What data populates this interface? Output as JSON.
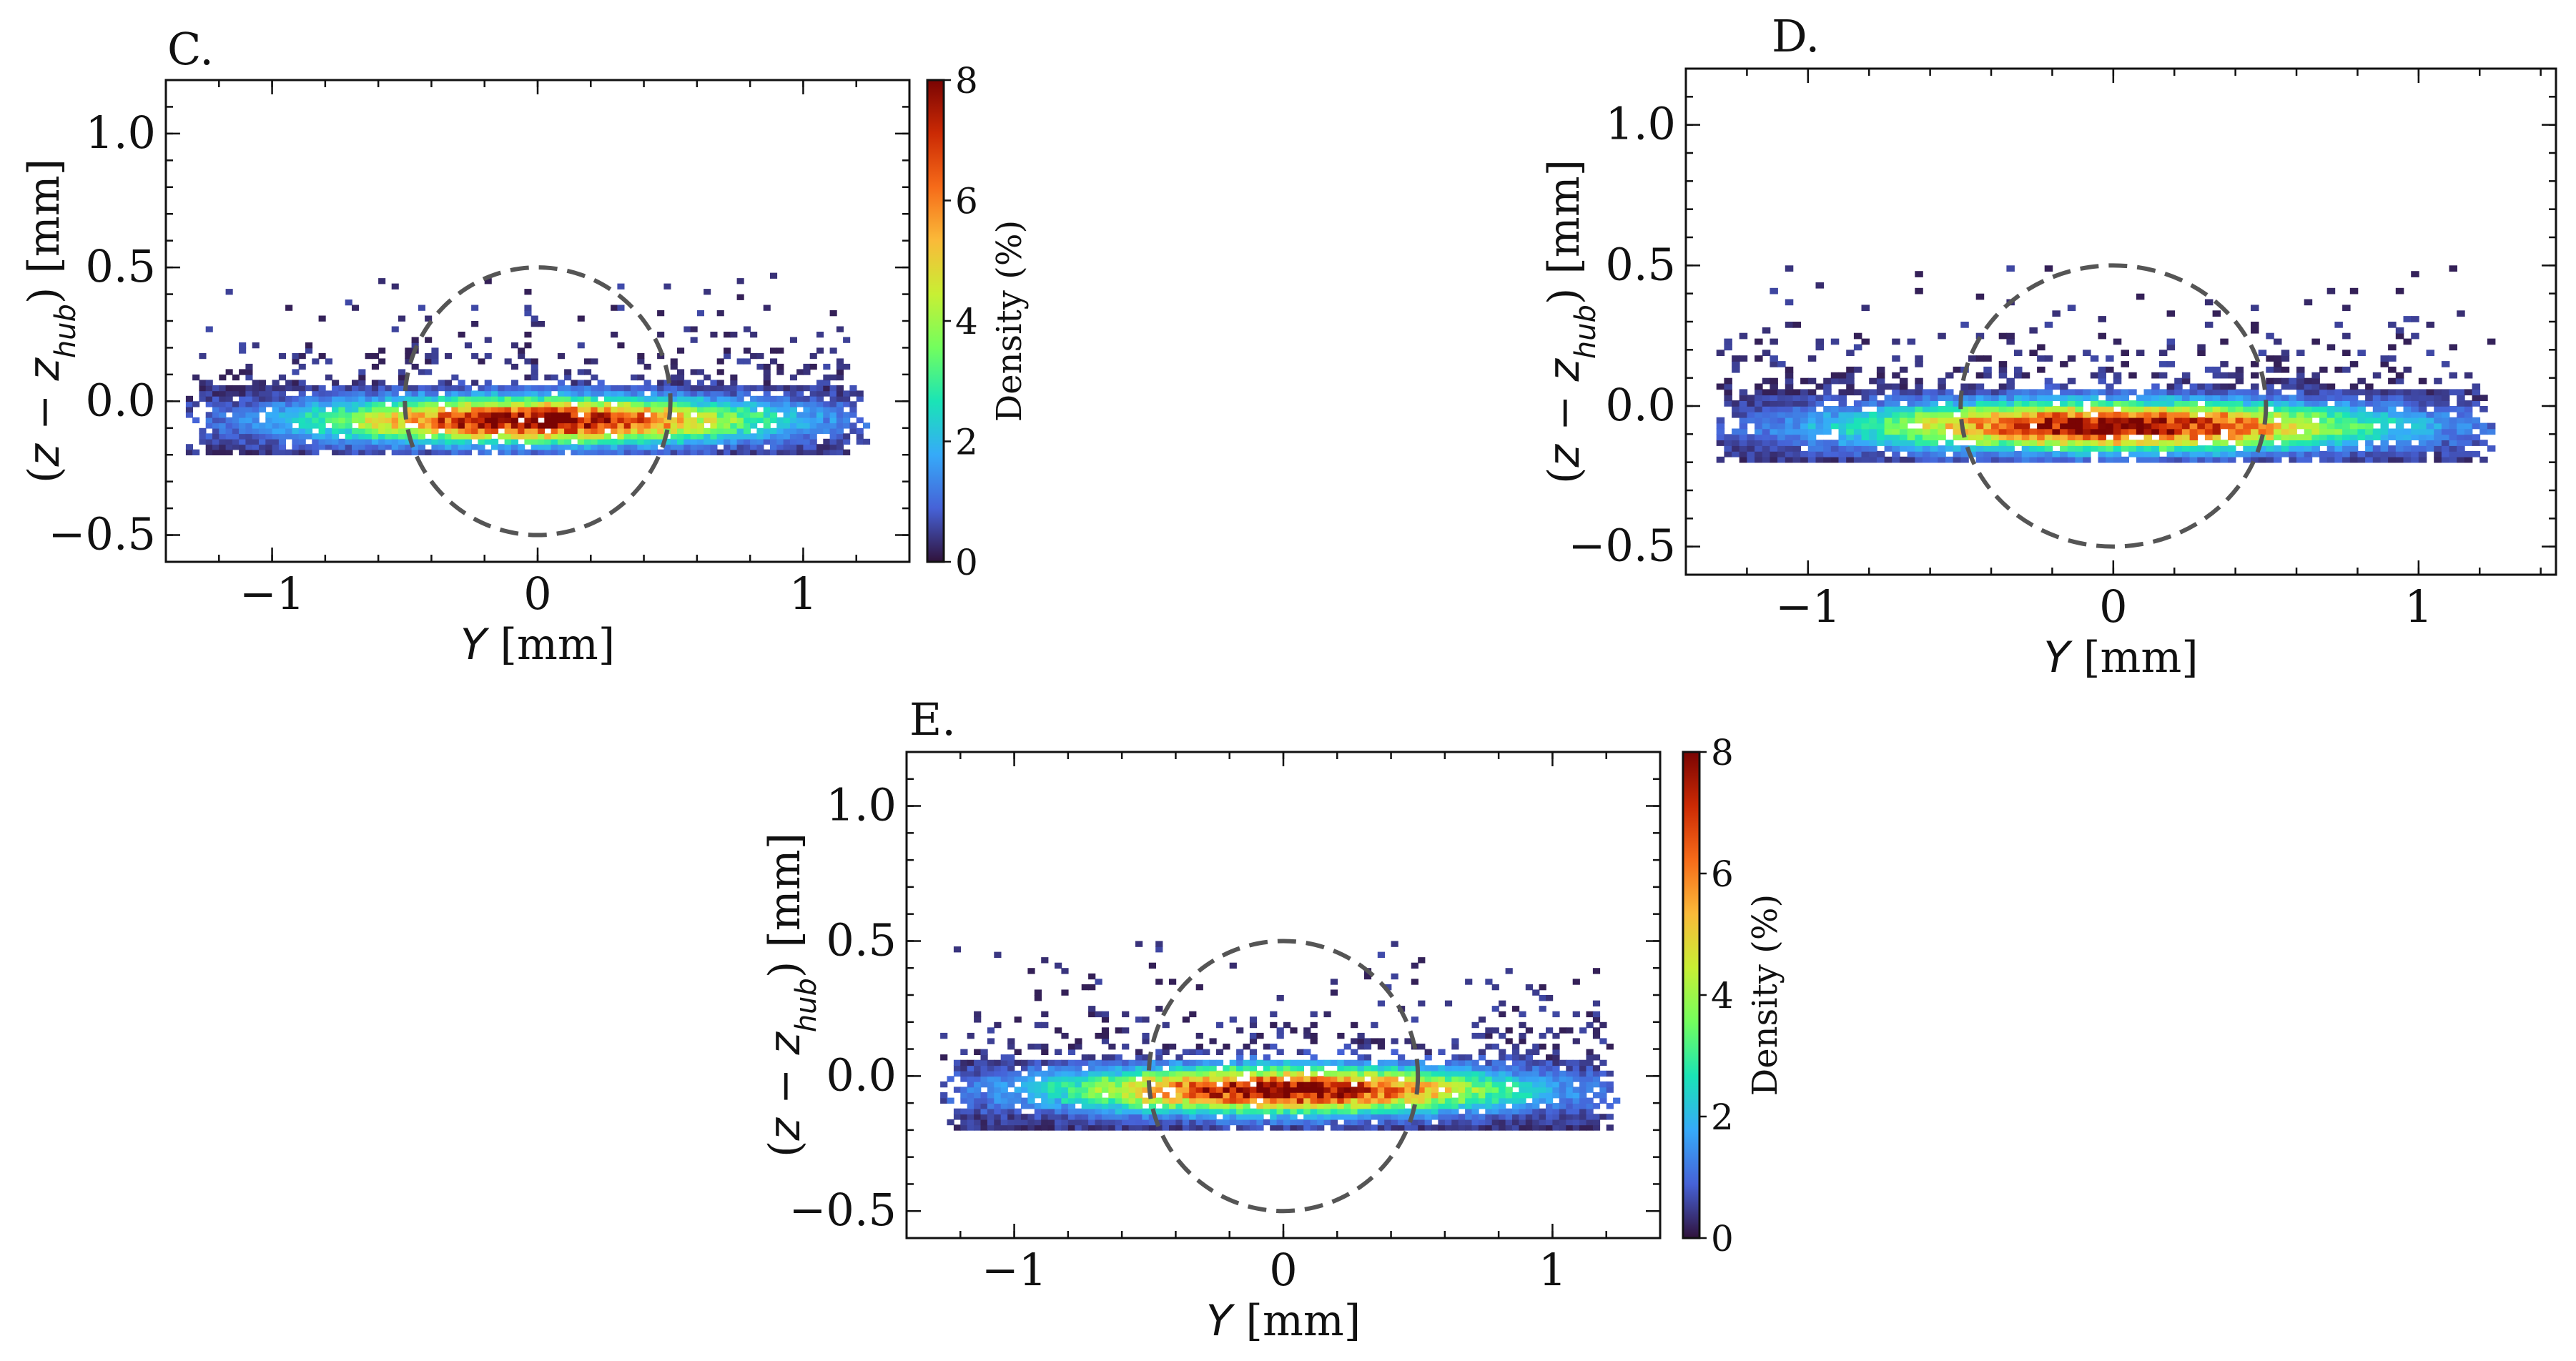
{
  "chart_data": [
    {
      "id": "C",
      "panel_label": "C.",
      "type": "heatmap",
      "xlabel_var": "Y",
      "xlabel_unit": " [mm]",
      "ylabel_open": "(",
      "ylabel_z": "z",
      "ylabel_minus": " − ",
      "ylabel_z2": "z",
      "ylabel_sub": "hub",
      "ylabel_close": ") [mm]",
      "xlim": [
        -1.4,
        1.4
      ],
      "ylim": [
        -0.6,
        1.2
      ],
      "xticks": [
        -1,
        0,
        1
      ],
      "xtick_labels": [
        "−1",
        "0",
        "1"
      ],
      "yticks": [
        -0.5,
        0.0,
        0.5,
        1.0
      ],
      "ytick_labels": [
        "−0.5",
        "0.0",
        "0.5",
        "1.0"
      ],
      "data_extent_y_mm": [
        -1.35,
        1.25
      ],
      "dense_band_z_mm": [
        -0.2,
        0.05
      ],
      "peak_center": {
        "y_mm": 0.0,
        "z_mm": -0.08
      },
      "peak_density_percent": 8,
      "reference_circle": {
        "center_y_mm": 0.0,
        "center_z_mm": 0.0,
        "radius_mm": 0.5
      },
      "has_colorbar": true,
      "colorbar": {
        "label": "Density (%)",
        "min": 0,
        "max": 8,
        "ticks": [
          0,
          2,
          4,
          6,
          8
        ],
        "tick_labels": [
          "0",
          "2",
          "4",
          "6",
          "8"
        ]
      }
    },
    {
      "id": "D",
      "panel_label": "D.",
      "type": "heatmap",
      "xlabel_var": "Y",
      "xlabel_unit": " [mm]",
      "ylabel_open": "(",
      "ylabel_z": "z",
      "ylabel_minus": " − ",
      "ylabel_z2": "z",
      "ylabel_sub": "hub",
      "ylabel_close": ") [mm]",
      "xlim": [
        -1.4,
        1.45
      ],
      "ylim": [
        -0.6,
        1.2
      ],
      "xticks": [
        -1,
        0,
        1
      ],
      "xtick_labels": [
        "−1",
        "0",
        "1"
      ],
      "yticks": [
        -0.5,
        0.0,
        0.5,
        1.0
      ],
      "ytick_labels": [
        "−0.5",
        "0.0",
        "0.5",
        "1.0"
      ],
      "data_extent_y_mm": [
        -1.35,
        1.25
      ],
      "dense_band_z_mm": [
        -0.2,
        0.05
      ],
      "peak_center": {
        "y_mm": 0.0,
        "z_mm": -0.08
      },
      "peak_density_percent": 8,
      "reference_circle": {
        "center_y_mm": 0.0,
        "center_z_mm": 0.0,
        "radius_mm": 0.5
      },
      "has_colorbar": false
    },
    {
      "id": "E",
      "panel_label": "E.",
      "type": "heatmap",
      "xlabel_var": "Y",
      "xlabel_unit": " [mm]",
      "ylabel_open": "(",
      "ylabel_z": "z",
      "ylabel_minus": " − ",
      "ylabel_z2": "z",
      "ylabel_sub": "hub",
      "ylabel_close": ") [mm]",
      "xlim": [
        -1.4,
        1.4
      ],
      "ylim": [
        -0.6,
        1.2
      ],
      "xticks": [
        -1,
        0,
        1
      ],
      "xtick_labels": [
        "−1",
        "0",
        "1"
      ],
      "yticks": [
        -0.5,
        0.0,
        0.5,
        1.0
      ],
      "ytick_labels": [
        "−0.5",
        "0.0",
        "0.5",
        "1.0"
      ],
      "data_extent_y_mm": [
        -1.3,
        1.25
      ],
      "dense_band_z_mm": [
        -0.2,
        0.05
      ],
      "peak_center": {
        "y_mm": 0.0,
        "z_mm": -0.06
      },
      "peak_density_percent": 8,
      "reference_circle": {
        "center_y_mm": 0.0,
        "center_z_mm": 0.0,
        "radius_mm": 0.5
      },
      "has_colorbar": true,
      "colorbar": {
        "label": "Density (%)",
        "min": 0,
        "max": 8,
        "ticks": [
          0,
          2,
          4,
          6,
          8
        ],
        "tick_labels": [
          "0",
          "2",
          "4",
          "6",
          "8"
        ]
      }
    }
  ],
  "colormap": [
    "#30123b",
    "#4662d7",
    "#36aaf9",
    "#1ae4b6",
    "#72fe5e",
    "#c8ef34",
    "#faba39",
    "#f66b19",
    "#cb2a04",
    "#7a0403"
  ],
  "reference_circle_color": "#555555"
}
